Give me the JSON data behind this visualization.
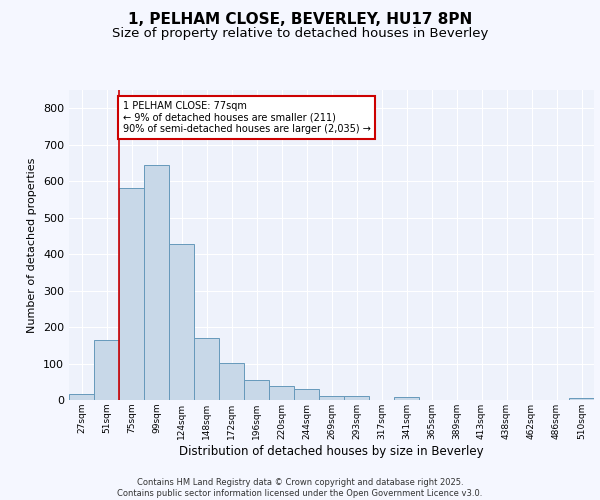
{
  "title1": "1, PELHAM CLOSE, BEVERLEY, HU17 8PN",
  "title2": "Size of property relative to detached houses in Beverley",
  "xlabel": "Distribution of detached houses by size in Beverley",
  "ylabel": "Number of detached properties",
  "bar_labels": [
    "27sqm",
    "51sqm",
    "75sqm",
    "99sqm",
    "124sqm",
    "148sqm",
    "172sqm",
    "196sqm",
    "220sqm",
    "244sqm",
    "269sqm",
    "293sqm",
    "317sqm",
    "341sqm",
    "365sqm",
    "389sqm",
    "413sqm",
    "438sqm",
    "462sqm",
    "486sqm",
    "510sqm"
  ],
  "bar_values": [
    17,
    165,
    580,
    645,
    428,
    170,
    102,
    55,
    38,
    30,
    12,
    10,
    0,
    8,
    0,
    0,
    0,
    0,
    0,
    0,
    5
  ],
  "bar_color": "#c8d8e8",
  "bar_edge_color": "#6699bb",
  "property_line_index": 2,
  "property_line_color": "#cc0000",
  "annotation_text": "1 PELHAM CLOSE: 77sqm\n← 9% of detached houses are smaller (211)\n90% of semi-detached houses are larger (2,035) →",
  "annotation_box_color": "#cc0000",
  "ylim": [
    0,
    850
  ],
  "yticks": [
    0,
    100,
    200,
    300,
    400,
    500,
    600,
    700,
    800
  ],
  "background_color": "#eef2fb",
  "grid_color": "#ffffff",
  "title1_fontsize": 11,
  "title2_fontsize": 9.5,
  "footer_text1": "Contains HM Land Registry data © Crown copyright and database right 2025.",
  "footer_text2": "Contains public sector information licensed under the Open Government Licence v3.0."
}
